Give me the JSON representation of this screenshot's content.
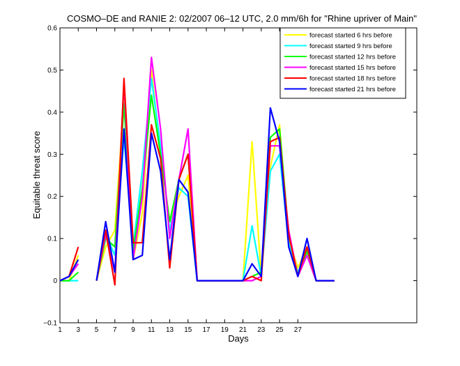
{
  "chart_data": {
    "type": "line",
    "title": "COSMO–DE and RANIE 2: 02/2007 06–12 UTC, 2.0 mm/6h for \"Rhine upriver of Main\"",
    "xlabel": "Days",
    "ylabel": "Equitable threat score",
    "xlim": [
      1,
      40
    ],
    "ylim": [
      -0.1,
      0.6
    ],
    "x_ticks": [
      1,
      3,
      5,
      7,
      9,
      11,
      13,
      15,
      17,
      19,
      21,
      23,
      25,
      27
    ],
    "y_ticks": [
      -0.1,
      0,
      0.1,
      0.2,
      0.3,
      0.4,
      0.5,
      0.6
    ],
    "y_tick_labels": [
      "−0.1",
      "0",
      "0.1",
      "0.2",
      "0.3",
      "0.4",
      "0.5",
      "0.6"
    ],
    "legend_position": "top-right",
    "series": [
      {
        "name": "forecast started 6 hrs before",
        "color": "#ffff00",
        "values": [
          0,
          0,
          0.06,
          null,
          0,
          0.08,
          0.12,
          0.43,
          0.05,
          0.16,
          0.5,
          0.3,
          0.14,
          0.2,
          0.25,
          0,
          0,
          0,
          0,
          0,
          0,
          0.33,
          0.01,
          0.27,
          0.37,
          0.1,
          0.03,
          0.08,
          0,
          0,
          0
        ]
      },
      {
        "name": "forecast started 9 hrs before",
        "color": "#00ffff",
        "values": [
          0,
          0,
          0,
          null,
          0,
          0.11,
          0.06,
          0.34,
          0.08,
          0.26,
          0.48,
          0.32,
          0.12,
          0.22,
          0.2,
          0,
          0,
          0,
          0,
          0,
          0,
          0.13,
          0.01,
          0.26,
          0.3,
          0.09,
          0.02,
          0.06,
          0,
          0,
          0
        ]
      },
      {
        "name": "forecast started 12 hrs before",
        "color": "#00ff00",
        "values": [
          0,
          0,
          0.02,
          null,
          0,
          0.1,
          0.08,
          0.42,
          0.07,
          0.22,
          0.44,
          0.3,
          0.14,
          0.24,
          0.3,
          0,
          0,
          0,
          0,
          0,
          0,
          0.01,
          0.02,
          0.34,
          0.36,
          0.11,
          0.01,
          0.07,
          0,
          0,
          0
        ]
      },
      {
        "name": "forecast started 15 hrs before",
        "color": "#ff00ff",
        "values": [
          0,
          0.01,
          0.04,
          null,
          0,
          0.11,
          0.02,
          0.47,
          0.05,
          0.2,
          0.53,
          0.36,
          0.1,
          0.24,
          0.36,
          0,
          0,
          0,
          0,
          0,
          0,
          0,
          0.01,
          0.32,
          0.32,
          0.12,
          0.01,
          0.06,
          0,
          0,
          0
        ]
      },
      {
        "name": "forecast started 18 hrs before",
        "color": "#ff0000",
        "values": [
          0,
          0.01,
          0.08,
          null,
          0,
          0.12,
          -0.01,
          0.48,
          0.09,
          0.09,
          0.37,
          0.29,
          0.03,
          0.24,
          0.3,
          0,
          0,
          0,
          0,
          0,
          0,
          0.01,
          0,
          0.33,
          0.34,
          0.11,
          0.01,
          0.08,
          0,
          0,
          0
        ]
      },
      {
        "name": "forecast started 21 hrs before",
        "color": "#0000ff",
        "values": [
          0,
          0.01,
          0.05,
          null,
          0,
          0.14,
          0.02,
          0.36,
          0.05,
          0.06,
          0.35,
          0.26,
          0.05,
          0.24,
          0.21,
          0,
          0,
          0,
          0,
          0,
          0,
          0.04,
          0.01,
          0.41,
          0.33,
          0.08,
          0.01,
          0.1,
          0,
          0,
          0
        ]
      }
    ],
    "x": [
      1,
      2,
      3,
      4,
      5,
      6,
      7,
      8,
      9,
      10,
      11,
      12,
      13,
      14,
      15,
      16,
      17,
      18,
      19,
      20,
      21,
      22,
      23,
      24,
      25,
      26,
      27,
      28,
      29,
      30,
      31
    ]
  }
}
